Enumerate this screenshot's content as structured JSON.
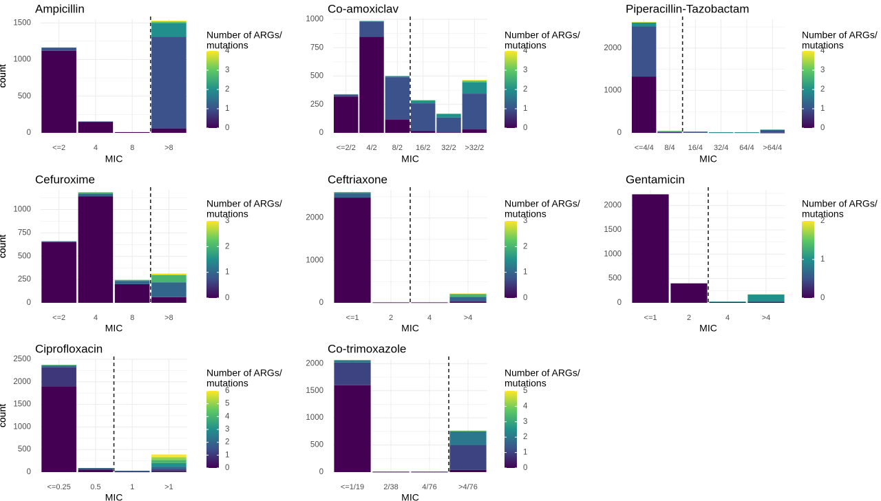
{
  "legend": {
    "title_line1": "Number of ARGs/",
    "title_line2": "mutations"
  },
  "palette": {
    "viridis": [
      "#440154",
      "#3b528b",
      "#21908c",
      "#5dc863",
      "#fde725"
    ],
    "grid": "#ebebeb",
    "text": "#000000",
    "tick": "#4d4d4d"
  },
  "chart_data": [
    {
      "type": "bar",
      "stacked": true,
      "title": "Ampicillin",
      "xlabel": "MIC",
      "ylabel": "count",
      "categories": [
        "<=2",
        "4",
        "8",
        ">8"
      ],
      "ylim": [
        0,
        1550
      ],
      "yticks": [
        0,
        500,
        1000,
        1500
      ],
      "breakpoint_after_index": 2,
      "legend_max": 4,
      "legend_ticks": [
        0,
        1,
        2,
        3,
        4
      ],
      "series": [
        {
          "name": "0",
          "values": [
            1120,
            150,
            10,
            60
          ]
        },
        {
          "name": "1",
          "values": [
            40,
            5,
            0,
            1250
          ]
        },
        {
          "name": "2",
          "values": [
            5,
            0,
            0,
            190
          ]
        },
        {
          "name": "3",
          "values": [
            0,
            0,
            0,
            20
          ]
        },
        {
          "name": "4",
          "values": [
            0,
            0,
            0,
            10
          ]
        }
      ]
    },
    {
      "type": "bar",
      "stacked": true,
      "title": "Co-amoxiclav",
      "xlabel": "MIC",
      "ylabel": "count",
      "categories": [
        "<=2/2",
        "4/2",
        "8/2",
        "16/2",
        "32/2",
        ">32/2"
      ],
      "ylim": [
        0,
        1000
      ],
      "yticks": [
        0,
        250,
        500,
        750,
        1000
      ],
      "breakpoint_after_index": 2,
      "legend_max": 4,
      "legend_ticks": [
        0,
        1,
        2,
        3,
        4
      ],
      "series": [
        {
          "name": "0",
          "values": [
            320,
            845,
            115,
            15,
            5,
            30
          ]
        },
        {
          "name": "1",
          "values": [
            15,
            135,
            375,
            245,
            130,
            315
          ]
        },
        {
          "name": "2",
          "values": [
            5,
            5,
            10,
            25,
            30,
            100
          ]
        },
        {
          "name": "3",
          "values": [
            0,
            0,
            0,
            3,
            5,
            15
          ]
        },
        {
          "name": "4",
          "values": [
            0,
            0,
            0,
            0,
            0,
            5
          ]
        }
      ]
    },
    {
      "type": "bar",
      "stacked": true,
      "title": "Piperacillin-Tazobactam",
      "xlabel": "MIC",
      "ylabel": "count",
      "categories": [
        "<=4/4",
        "8/4",
        "16/4",
        "32/4",
        "64/4",
        ">64/4"
      ],
      "ylim": [
        0,
        2680
      ],
      "yticks": [
        0,
        1000,
        2000
      ],
      "breakpoint_after_index": 1,
      "legend_max": 4,
      "legend_ticks": [
        0,
        1,
        2,
        3,
        4
      ],
      "series": [
        {
          "name": "0",
          "values": [
            1330,
            10,
            0,
            0,
            0,
            5
          ]
        },
        {
          "name": "1",
          "values": [
            1180,
            10,
            20,
            10,
            10,
            60
          ]
        },
        {
          "name": "2",
          "values": [
            90,
            20,
            10,
            5,
            5,
            10
          ]
        },
        {
          "name": "3",
          "values": [
            15,
            5,
            0,
            0,
            0,
            0
          ]
        },
        {
          "name": "4",
          "values": [
            5,
            0,
            0,
            0,
            0,
            0
          ]
        }
      ]
    },
    {
      "type": "bar",
      "stacked": true,
      "title": "Cefuroxime",
      "xlabel": "MIC",
      "ylabel": "count",
      "categories": [
        "<=2",
        "4",
        "8",
        ">8"
      ],
      "ylim": [
        0,
        1210
      ],
      "yticks": [
        0,
        250,
        500,
        750,
        1000
      ],
      "breakpoint_after_index": 2,
      "legend_max": 3,
      "legend_ticks": [
        0,
        1,
        2,
        3
      ],
      "series": [
        {
          "name": "0",
          "values": [
            650,
            1140,
            200,
            60
          ]
        },
        {
          "name": "1",
          "values": [
            10,
            30,
            35,
            160
          ]
        },
        {
          "name": "2",
          "values": [
            0,
            15,
            10,
            80
          ]
        },
        {
          "name": "3",
          "values": [
            0,
            0,
            0,
            15
          ]
        }
      ]
    },
    {
      "type": "bar",
      "stacked": true,
      "title": "Ceftriaxone",
      "xlabel": "MIC",
      "ylabel": "count",
      "categories": [
        "<=1",
        "2",
        "4",
        ">4"
      ],
      "ylim": [
        0,
        2660
      ],
      "yticks": [
        0,
        1000,
        2000
      ],
      "breakpoint_after_index": 1,
      "legend_max": 3,
      "legend_ticks": [
        0,
        1,
        2,
        3
      ],
      "series": [
        {
          "name": "0",
          "values": [
            2480,
            10,
            10,
            30
          ]
        },
        {
          "name": "1",
          "values": [
            110,
            0,
            0,
            110
          ]
        },
        {
          "name": "2",
          "values": [
            20,
            0,
            0,
            70
          ]
        },
        {
          "name": "3",
          "values": [
            0,
            0,
            0,
            10
          ]
        }
      ]
    },
    {
      "type": "bar",
      "stacked": true,
      "title": "Gentamicin",
      "xlabel": "MIC",
      "ylabel": "count",
      "categories": [
        "<=1",
        "2",
        "4",
        ">4"
      ],
      "ylim": [
        0,
        2320
      ],
      "yticks": [
        0,
        500,
        1000,
        1500,
        2000
      ],
      "breakpoint_after_index": 1,
      "legend_max": 2,
      "legend_ticks": [
        0,
        1,
        2
      ],
      "series": [
        {
          "name": "0",
          "values": [
            2230,
            400,
            20,
            20
          ]
        },
        {
          "name": "1",
          "values": [
            0,
            0,
            5,
            155
          ]
        },
        {
          "name": "2",
          "values": [
            0,
            0,
            0,
            5
          ]
        }
      ]
    },
    {
      "type": "bar",
      "stacked": true,
      "title": "Ciprofloxacin",
      "xlabel": "MIC",
      "ylabel": "count",
      "categories": [
        "<=0.25",
        "0.5",
        "1",
        ">1"
      ],
      "ylim": [
        0,
        2500
      ],
      "yticks": [
        0,
        500,
        1000,
        1500,
        2000,
        2500
      ],
      "breakpoint_after_index": 1,
      "legend_max": 6,
      "legend_ticks": [
        0,
        1,
        2,
        3,
        4,
        5,
        6
      ],
      "series": [
        {
          "name": "0",
          "values": [
            1900,
            50,
            10,
            20
          ]
        },
        {
          "name": "1",
          "values": [
            420,
            30,
            15,
            40
          ]
        },
        {
          "name": "2",
          "values": [
            40,
            10,
            5,
            60
          ]
        },
        {
          "name": "3",
          "values": [
            10,
            0,
            0,
            80
          ]
        },
        {
          "name": "4",
          "values": [
            5,
            0,
            0,
            70
          ]
        },
        {
          "name": "5",
          "values": [
            0,
            0,
            0,
            60
          ]
        },
        {
          "name": "6",
          "values": [
            0,
            0,
            0,
            60
          ]
        }
      ]
    },
    {
      "type": "bar",
      "stacked": true,
      "title": "Co-trimoxazole",
      "xlabel": "MIC",
      "ylabel": "count",
      "categories": [
        "<=1/19",
        "2/38",
        "4/76",
        ">4/76"
      ],
      "ylim": [
        0,
        2080
      ],
      "yticks": [
        0,
        500,
        1000,
        1500,
        2000
      ],
      "breakpoint_after_index": 2,
      "legend_max": 5,
      "legend_ticks": [
        0,
        1,
        2,
        3,
        4,
        5
      ],
      "series": [
        {
          "name": "0",
          "values": [
            1600,
            5,
            5,
            40
          ]
        },
        {
          "name": "1",
          "values": [
            420,
            5,
            5,
            460
          ]
        },
        {
          "name": "2",
          "values": [
            40,
            0,
            0,
            250
          ]
        },
        {
          "name": "3",
          "values": [
            5,
            0,
            0,
            10
          ]
        },
        {
          "name": "4",
          "values": [
            0,
            0,
            0,
            5
          ]
        },
        {
          "name": "5",
          "values": [
            0,
            0,
            0,
            0
          ]
        }
      ]
    }
  ]
}
